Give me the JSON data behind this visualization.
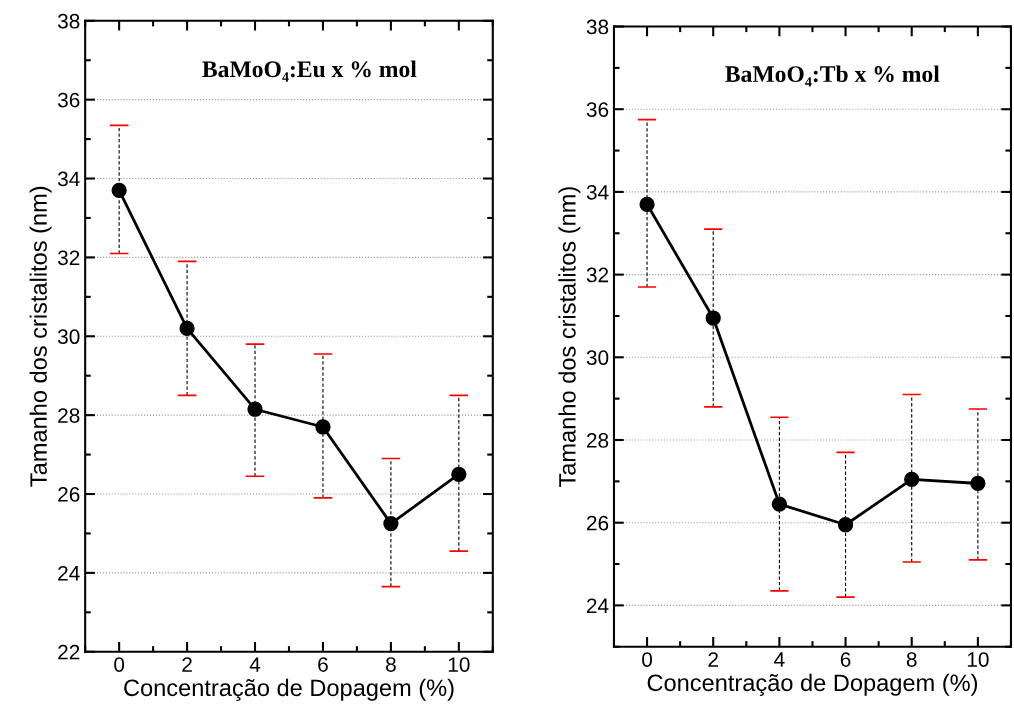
{
  "chart_data": [
    {
      "type": "line",
      "title": "BaMoO₄:Eu x % mol",
      "xlabel": "Concentração de Dopagem (%)",
      "ylabel": "Tamanho dos cristalitos (nm)",
      "x": [
        0,
        2,
        4,
        6,
        8,
        10
      ],
      "series": [
        {
          "color": "#000000",
          "values": [
            33.7,
            30.2,
            28.15,
            27.7,
            25.25,
            26.5
          ],
          "errors": [
            [
              32.1,
              35.35
            ],
            [
              28.5,
              31.9
            ],
            [
              26.45,
              29.8
            ],
            [
              25.9,
              29.55
            ],
            [
              23.65,
              26.9
            ],
            [
              24.55,
              28.5
            ]
          ]
        }
      ],
      "xlim": [
        -1,
        11
      ],
      "xticks": [
        0,
        2,
        4,
        6,
        8,
        10
      ],
      "ylim": [
        22,
        38
      ],
      "yticks": [
        22,
        24,
        26,
        28,
        30,
        32,
        34,
        36,
        38
      ],
      "grid": "y",
      "marker": "circle",
      "line_style": "solid"
    },
    {
      "type": "line",
      "title": "BaMoO₄:Tb x % mol",
      "xlabel": "Concentração de Dopagem (%)",
      "ylabel": "Tamanho dos cristalitos (nm)",
      "x": [
        0,
        2,
        4,
        6,
        8,
        10
      ],
      "series": [
        {
          "color": "#000000",
          "values": [
            33.7,
            30.95,
            26.45,
            25.95,
            27.05,
            26.95
          ],
          "errors": [
            [
              31.7,
              35.75
            ],
            [
              28.8,
              33.1
            ],
            [
              24.35,
              28.55
            ],
            [
              24.2,
              27.7
            ],
            [
              25.05,
              29.1
            ],
            [
              25.1,
              28.75
            ]
          ]
        }
      ],
      "xlim": [
        -1,
        11
      ],
      "xticks": [
        0,
        2,
        4,
        6,
        8,
        10
      ],
      "ylim": [
        23,
        38
      ],
      "yticks": [
        24,
        26,
        28,
        30,
        32,
        34,
        36,
        38
      ],
      "grid": "y",
      "marker": "circle",
      "line_style": "solid"
    }
  ]
}
